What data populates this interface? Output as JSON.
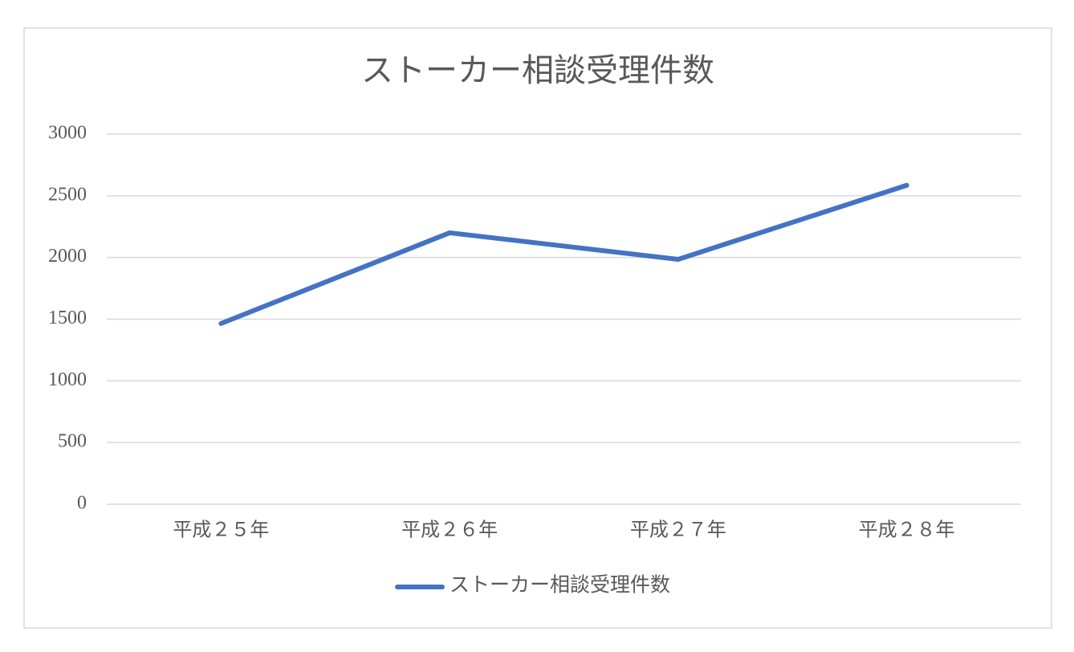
{
  "chart_data": {
    "type": "line",
    "title": "ストーカー相談受理件数",
    "categories": [
      "平成２５年",
      "平成２６年",
      "平成２７年",
      "平成２８年"
    ],
    "series": [
      {
        "name": "ストーカー相談受理件数",
        "color": "#4472c4",
        "values": [
          1465,
          2200,
          1985,
          2585
        ]
      }
    ],
    "ylim": [
      0,
      3000
    ],
    "yticks": [
      0,
      500,
      1000,
      1500,
      2000,
      2500,
      3000
    ],
    "grid": true,
    "legend": "bottom"
  }
}
